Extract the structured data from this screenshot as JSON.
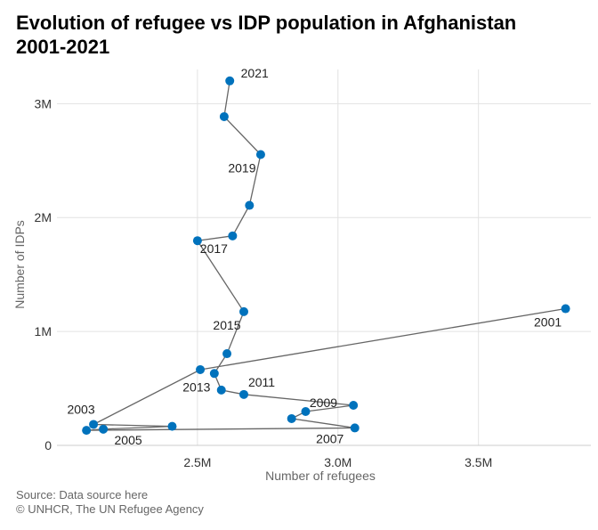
{
  "title_line1": "Evolution of refugee vs IDP population in Afghanistan",
  "title_line2": "2001-2021",
  "source": "Source: Data source here",
  "credit": "© UNHCR, The UN Refugee Agency",
  "chart_data": {
    "type": "scatter",
    "connected": true,
    "xlabel": "Number of refugees",
    "ylabel": "Number of IDPs",
    "xlim": [
      2000000,
      3900000
    ],
    "ylim": [
      0,
      3300000
    ],
    "xticks": [
      2500000,
      3000000,
      3500000
    ],
    "xtick_labels": [
      "2.5M",
      "3.0M",
      "3.5M"
    ],
    "yticks": [
      0,
      1000000,
      2000000,
      3000000
    ],
    "ytick_labels": [
      "0",
      "1M",
      "2M",
      "3M"
    ],
    "grid": true,
    "marker_color": "#0072bc",
    "line_color": "#666666",
    "points": [
      {
        "year": 2001,
        "x": 3810000,
        "y": 1200000,
        "label": "2001"
      },
      {
        "year": 2002,
        "x": 2510000,
        "y": 665000,
        "label": ""
      },
      {
        "year": 2003,
        "x": 2130000,
        "y": 184000,
        "label": "2003"
      },
      {
        "year": 2004,
        "x": 2410000,
        "y": 167000,
        "label": ""
      },
      {
        "year": 2005,
        "x": 2165000,
        "y": 142000,
        "label": "2005"
      },
      {
        "year": 2006,
        "x": 2105000,
        "y": 132000,
        "label": ""
      },
      {
        "year": 2007,
        "x": 3060000,
        "y": 153000,
        "label": "2007"
      },
      {
        "year": 2008,
        "x": 2835000,
        "y": 235000,
        "label": ""
      },
      {
        "year": 2009,
        "x": 2885000,
        "y": 297000,
        "label": "2009"
      },
      {
        "year": 2010,
        "x": 3055000,
        "y": 352000,
        "label": ""
      },
      {
        "year": 2011,
        "x": 2665000,
        "y": 447000,
        "label": "2011"
      },
      {
        "year": 2012,
        "x": 2585000,
        "y": 486000,
        "label": ""
      },
      {
        "year": 2013,
        "x": 2560000,
        "y": 631000,
        "label": "2013"
      },
      {
        "year": 2014,
        "x": 2605000,
        "y": 805000,
        "label": ""
      },
      {
        "year": 2015,
        "x": 2665000,
        "y": 1174000,
        "label": "2015"
      },
      {
        "year": 2016,
        "x": 2500000,
        "y": 1797000,
        "label": ""
      },
      {
        "year": 2017,
        "x": 2625000,
        "y": 1839000,
        "label": "2017"
      },
      {
        "year": 2018,
        "x": 2685000,
        "y": 2107000,
        "label": ""
      },
      {
        "year": 2019,
        "x": 2725000,
        "y": 2553000,
        "label": "2019"
      },
      {
        "year": 2020,
        "x": 2595000,
        "y": 2886000,
        "label": ""
      },
      {
        "year": 2021,
        "x": 2615000,
        "y": 3200000,
        "label": "2021"
      }
    ]
  }
}
